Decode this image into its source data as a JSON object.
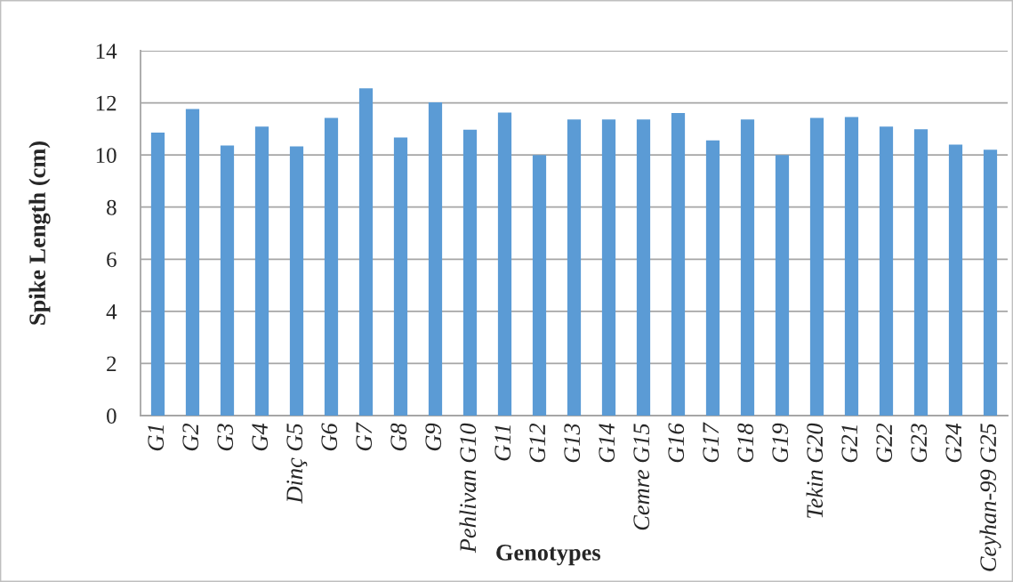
{
  "chart_data": {
    "type": "bar",
    "xlabel": "Genotypes",
    "ylabel": "Spike Length (cm)",
    "categories": [
      "G1",
      "G2",
      "G3",
      "G4",
      "Dinç G5",
      "G6",
      "G7",
      "G8",
      "G9",
      "Pehlivan G10",
      "G11",
      "G12",
      "G13",
      "G14",
      "Cemre G15",
      "G16",
      "G17",
      "G18",
      "G19",
      "Tekin G20",
      "G21",
      "G22",
      "G23",
      "G24",
      "Ceyhan-99 G25"
    ],
    "values": [
      10.86,
      11.76,
      10.36,
      11.09,
      10.33,
      11.42,
      12.56,
      10.67,
      12.02,
      10.97,
      11.63,
      10.0,
      11.36,
      11.36,
      11.36,
      11.61,
      10.56,
      11.36,
      10.0,
      11.42,
      11.46,
      11.09,
      10.99,
      10.4,
      10.2
    ],
    "color": "#5b9bd5",
    "ylim": [
      0,
      14
    ],
    "yticks": [
      0,
      2,
      4,
      6,
      8,
      10,
      12,
      14
    ],
    "grid": "y"
  }
}
